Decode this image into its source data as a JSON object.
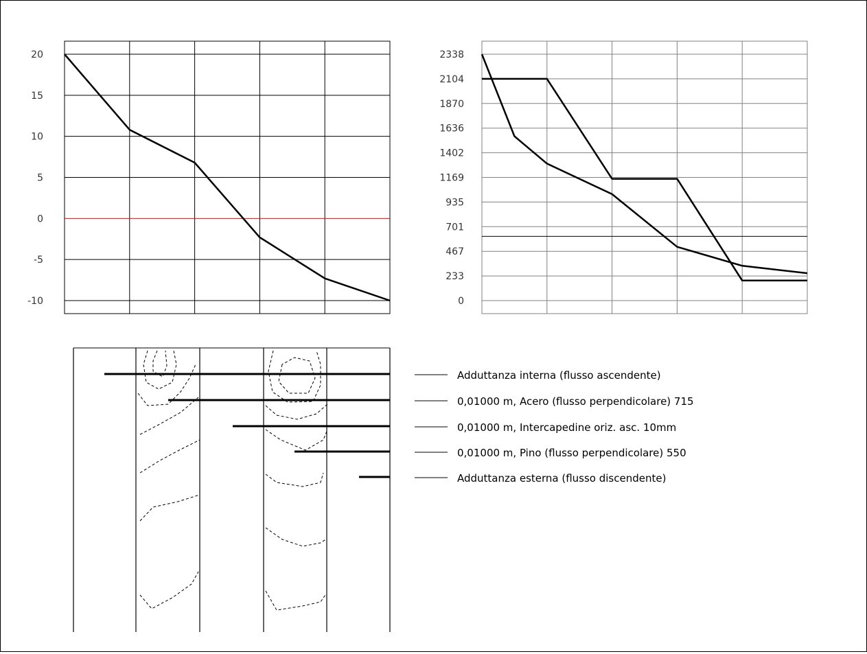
{
  "chart_data": [
    {
      "type": "line",
      "yticks": [
        "20",
        "15",
        "10",
        "5",
        "0",
        "-5",
        "-10"
      ],
      "ylim": [
        -10,
        20
      ],
      "x_sections": 5,
      "zero_line_color": "#ff0000",
      "series": [
        {
          "points": [
            [
              0,
              20
            ],
            [
              1,
              10.8
            ],
            [
              2,
              6.8
            ],
            [
              3,
              -2.3
            ],
            [
              4,
              -7.3
            ],
            [
              5,
              -10
            ]
          ]
        }
      ]
    },
    {
      "type": "line",
      "yticks": [
        "2338",
        "2104",
        "1870",
        "1636",
        "1402",
        "1169",
        "935",
        "701",
        "467",
        "233",
        "0"
      ],
      "ylim": [
        0,
        2338
      ],
      "x_sections": 5,
      "hline": 610,
      "series": [
        {
          "points": [
            [
              0,
              2338
            ],
            [
              0.5,
              1560
            ],
            [
              1,
              1300
            ],
            [
              2,
              1010
            ],
            [
              3,
              510
            ],
            [
              4,
              330
            ],
            [
              5,
              260
            ]
          ]
        },
        {
          "points": [
            [
              0,
              2104
            ],
            [
              1,
              2104
            ],
            [
              2,
              1155
            ],
            [
              3,
              1155
            ],
            [
              4,
              190
            ],
            [
              5,
              190
            ]
          ]
        }
      ]
    }
  ],
  "legend": [
    {
      "label": "Adduttanza interna (flusso ascendente)"
    },
    {
      "label": "0,01000 m, Acero (flusso perpendicolare)  715"
    },
    {
      "label": "0,01000 m, Intercapedine oriz. asc. 10mm"
    },
    {
      "label": "0,01000 m, Pino  (flusso perpendicolare)  550"
    },
    {
      "label": "Adduttanza esterna (flusso discendente)"
    }
  ],
  "colors": {
    "line": "#000000",
    "grid_dark": "#000000",
    "grid_light": "#808080",
    "zero": "#ff0000"
  }
}
